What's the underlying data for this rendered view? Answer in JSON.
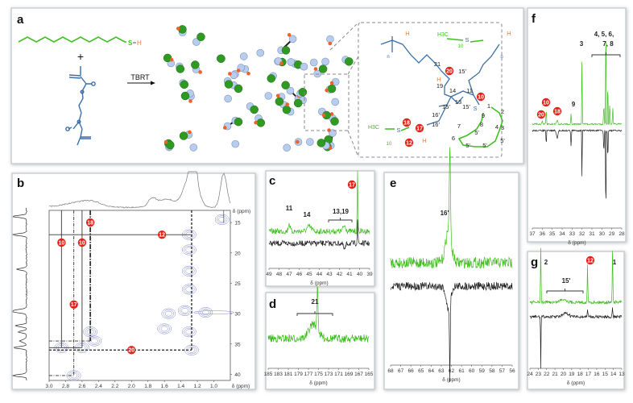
{
  "figure": {
    "panel_labels": [
      "a",
      "b",
      "c",
      "d",
      "e",
      "f",
      "g"
    ],
    "colors": {
      "green": "#3fbf1f",
      "black": "#222222",
      "blue": "#3a6fa8",
      "red": "#e32219",
      "orange": "#f07a3a",
      "contour": "#7f86c8"
    }
  },
  "panel_a": {
    "plus": "+",
    "reagent_thiol": {
      "S": "S",
      "H": "H"
    },
    "reaction_label": "TBRT",
    "structure": {
      "plain_labels": [
        "21",
        "15'",
        "19",
        "14",
        "11",
        "13",
        "15'",
        "15'",
        "16'",
        "16'",
        "9",
        "8",
        "7",
        "1",
        "2",
        "4",
        "3",
        "5'",
        "5'",
        "6",
        "5'",
        "5'"
      ],
      "heteroatoms": [
        "S",
        "S",
        "S"
      ],
      "hydrogens": [
        "H",
        "H",
        "H",
        "H"
      ],
      "h3c": [
        "H3C",
        "H3C"
      ],
      "repeat_subscripts": [
        "10",
        "10",
        "n",
        "n"
      ],
      "red_labels": [
        "20",
        "10",
        "18",
        "17",
        "12"
      ]
    }
  },
  "chart_data": [
    {
      "panel": "b",
      "type": "heatmap",
      "description_of_axes": "",
      "xlabel": "δ (ppm)",
      "ylabel": "δ (ppm)",
      "xlim": [
        3.0,
        0.8
      ],
      "ylim": [
        13,
        41
      ],
      "x_ticks": [
        "3.0",
        "2.8",
        "2.6",
        "2.4",
        "2.2",
        "2.0",
        "1.8",
        "1.6",
        "1.4",
        "1.2",
        "1.0"
      ],
      "y_ticks": [
        "15",
        "20",
        "25",
        "30",
        "35",
        "40"
      ],
      "correlations": [
        {
          "label": "18",
          "x": 2.5,
          "y": 15
        },
        {
          "label": "12",
          "x": 1.63,
          "y": 17
        },
        {
          "label": "10",
          "x": 2.85,
          "y": 18.3
        },
        {
          "label": "10",
          "x": 2.6,
          "y": 18.3
        },
        {
          "label": "17",
          "x": 2.7,
          "y": 28.5
        },
        {
          "label": "20",
          "x": 2.0,
          "y": 36
        }
      ]
    },
    {
      "panel": "c",
      "type": "line",
      "xlabel": "δ (ppm)",
      "xlim": [
        49,
        39
      ],
      "x_ticks": [
        "49",
        "48",
        "47",
        "46",
        "45",
        "44",
        "43",
        "42",
        "41",
        "40",
        "39"
      ],
      "peak_labels": [
        {
          "text": "11",
          "x": 47
        },
        {
          "text": "14",
          "x": 45
        },
        {
          "text": "13,19",
          "x": 41.5
        }
      ],
      "red_labels": [
        {
          "text": "17",
          "x": 40.2
        }
      ]
    },
    {
      "panel": "d",
      "type": "line",
      "xlabel": "δ (ppm)",
      "xlim": [
        185,
        165
      ],
      "x_ticks": [
        "185",
        "183",
        "181",
        "179",
        "177",
        "175",
        "173",
        "171",
        "169",
        "167",
        "165"
      ],
      "peak_labels": [
        {
          "text": "21",
          "x": 176
        }
      ]
    },
    {
      "panel": "e",
      "type": "line",
      "xlabel": "δ (ppm)",
      "xlim": [
        68,
        56
      ],
      "x_ticks": [
        "68",
        "67",
        "66",
        "65",
        "64",
        "63",
        "62",
        "61",
        "60",
        "59",
        "58",
        "57",
        "56"
      ],
      "peak_labels": [
        {
          "text": "16'",
          "x": 62.2
        }
      ]
    },
    {
      "panel": "f",
      "type": "line",
      "xlabel": "δ (ppm)",
      "xlim": [
        37,
        28
      ],
      "x_ticks": [
        "37",
        "36",
        "35",
        "34",
        "33",
        "32",
        "31",
        "30",
        "29",
        "28"
      ],
      "peak_labels": [
        {
          "text": "3",
          "x": 32
        },
        {
          "text": "9",
          "x": 33
        },
        {
          "text": "4, 5, 6,",
          "x": 29.5
        },
        {
          "text": "7, 8",
          "x": 29.5
        }
      ],
      "red_labels": [
        {
          "text": "10",
          "x": 35.6
        },
        {
          "text": "20",
          "x": 36
        },
        {
          "text": "18",
          "x": 34.5
        }
      ]
    },
    {
      "panel": "g",
      "type": "line",
      "xlabel": "δ (ppm)",
      "xlim": [
        24,
        13
      ],
      "x_ticks": [
        "24",
        "23",
        "22",
        "21",
        "20",
        "19",
        "18",
        "17",
        "16",
        "15",
        "14",
        "13"
      ],
      "peak_labels": [
        {
          "text": "2",
          "x": 22.7
        },
        {
          "text": "15'",
          "x": 20
        },
        {
          "text": "1",
          "x": 14.1
        }
      ],
      "red_labels": [
        {
          "text": "12",
          "x": 17.1
        }
      ]
    }
  ]
}
